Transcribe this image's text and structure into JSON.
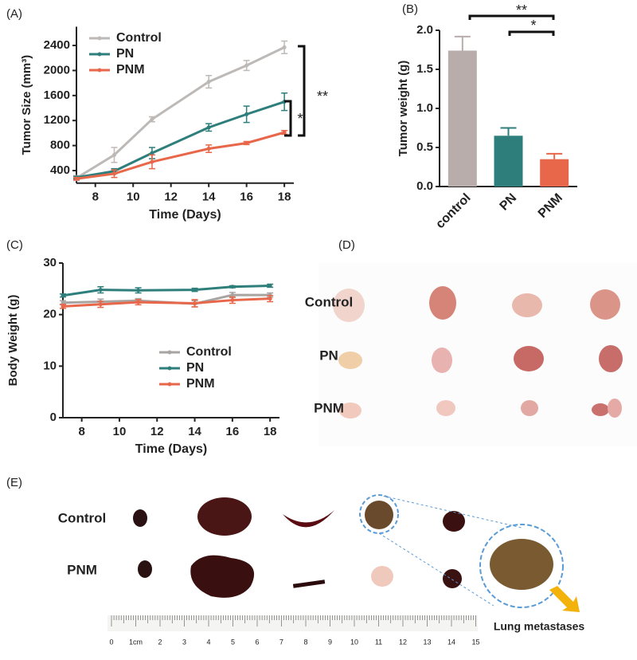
{
  "chart_data": [
    {
      "type": "line",
      "panel_label": "(A)",
      "xlabel": "Time (Days)",
      "ylabel": "Tumor Size (mm³)",
      "x": [
        7,
        9,
        11,
        14,
        16,
        18
      ],
      "xlim": [
        7,
        18.5
      ],
      "xticks": [
        8,
        10,
        12,
        14,
        16,
        18
      ],
      "ylim": [
        200,
        2700
      ],
      "yticks": [
        400,
        800,
        1200,
        1600,
        2000,
        2400
      ],
      "legend": "upper left",
      "series": [
        {
          "name": "Control",
          "color": "#bdb9b7",
          "values": [
            280,
            650,
            1220,
            1820,
            2080,
            2370
          ],
          "errors": [
            40,
            120,
            40,
            100,
            80,
            100
          ]
        },
        {
          "name": "PN",
          "color": "#2e7f7b",
          "values": [
            290,
            390,
            680,
            1090,
            1300,
            1500
          ],
          "errors": [
            20,
            40,
            90,
            60,
            130,
            140
          ]
        },
        {
          "name": "PNM",
          "color": "#e8674a",
          "values": [
            270,
            350,
            540,
            750,
            840,
            1010
          ],
          "errors": [
            20,
            60,
            110,
            60,
            25,
            30
          ]
        }
      ],
      "annotations": [
        "**",
        "*"
      ]
    },
    {
      "type": "bar",
      "panel_label": "(B)",
      "ylabel": "Tumor weight (g)",
      "categories": [
        "control",
        "PN",
        "PNM"
      ],
      "values": [
        1.74,
        0.65,
        0.35
      ],
      "errors": [
        0.18,
        0.1,
        0.07
      ],
      "colors": [
        "#b8adab",
        "#2e7f7b",
        "#e8674a"
      ],
      "ylim": [
        0,
        2
      ],
      "yticks": [
        {
          "value": 0,
          "label": "0.0"
        },
        {
          "value": 0.5,
          "label": "0.5"
        },
        {
          "value": 1,
          "label": "1.0"
        },
        {
          "value": 1.5,
          "label": "1.5"
        },
        {
          "value": 2,
          "label": "2.0"
        }
      ],
      "annotations": [
        "**",
        "*"
      ]
    },
    {
      "type": "line",
      "panel_label": "(C)",
      "xlabel": "Time (Days)",
      "ylabel": "Body Weight (g)",
      "x": [
        7,
        9,
        11,
        14,
        16,
        18
      ],
      "xlim": [
        7,
        18.5
      ],
      "xticks": [
        8,
        10,
        12,
        14,
        16,
        18
      ],
      "ylim": [
        0,
        30
      ],
      "yticks": [
        0,
        10,
        20,
        30
      ],
      "legend": "center",
      "series": [
        {
          "name": "Control",
          "color": "#a8a4a2",
          "values": [
            22.3,
            22.5,
            22.7,
            22.1,
            23.8,
            23.8
          ],
          "errors": [
            0.4,
            0.5,
            0.4,
            0.6,
            0.5,
            0.4
          ]
        },
        {
          "name": "PN",
          "color": "#2e7f7b",
          "values": [
            23.7,
            24.8,
            24.7,
            24.8,
            25.4,
            25.6
          ],
          "errors": [
            0.3,
            0.6,
            0.5,
            0.3,
            0.2,
            0.3
          ]
        },
        {
          "name": "PNM",
          "color": "#e8674a",
          "values": [
            21.6,
            22,
            22.4,
            22.2,
            22.8,
            23.1
          ],
          "errors": [
            0.4,
            0.6,
            0.5,
            0.7,
            0.6,
            0.6
          ]
        }
      ]
    }
  ],
  "photos": [
    {
      "panel_label": "(D)",
      "rows": [
        "Control",
        "PN",
        "PNM"
      ]
    },
    {
      "panel_label": "(E)",
      "rows": [
        "Control",
        "PNM"
      ],
      "callout": "Lung metastases",
      "ruler": [
        "0",
        "1cm",
        "2",
        "3",
        "4",
        "5",
        "6",
        "7",
        "8",
        "9",
        "10",
        "11",
        "12",
        "13",
        "14",
        "15"
      ]
    }
  ]
}
